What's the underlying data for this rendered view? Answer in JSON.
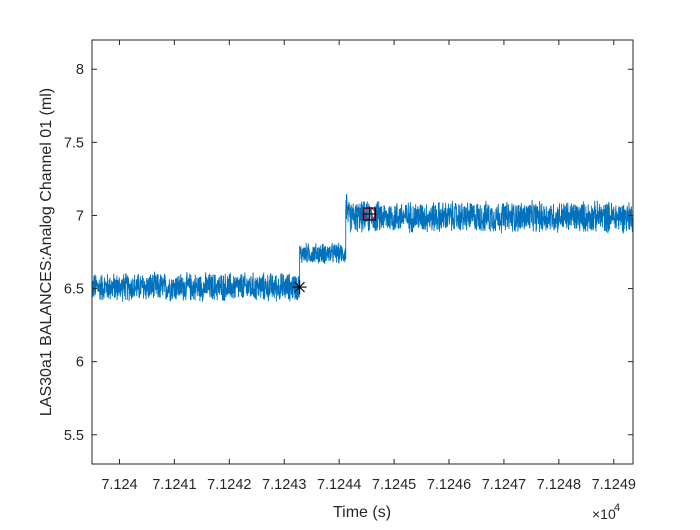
{
  "chart_data": {
    "type": "line",
    "xlabel": "Time (s)",
    "ylabel": "LAS30a1 BALANCES:Analog Channel  01 (ml)",
    "x_exponent_label": "×10",
    "x_exponent_power": "4",
    "xlim": [
      71239.5,
      71249.35
    ],
    "ylim": [
      5.3,
      8.2
    ],
    "x_ticks": [
      {
        "value": 71240,
        "label": "7.124"
      },
      {
        "value": 71241,
        "label": "7.1241"
      },
      {
        "value": 71242,
        "label": "7.1242"
      },
      {
        "value": 71243,
        "label": "7.1243"
      },
      {
        "value": 71244,
        "label": "7.1244"
      },
      {
        "value": 71245,
        "label": "7.1245"
      },
      {
        "value": 71246,
        "label": "7.1246"
      },
      {
        "value": 71247,
        "label": "7.1247"
      },
      {
        "value": 71248,
        "label": "7.1248"
      },
      {
        "value": 71249,
        "label": "7.1249"
      }
    ],
    "y_ticks": [
      {
        "value": 5.5,
        "label": "5.5"
      },
      {
        "value": 6,
        "label": "6"
      },
      {
        "value": 6.5,
        "label": "6.5"
      },
      {
        "value": 7,
        "label": "7"
      },
      {
        "value": 7.5,
        "label": "7.5"
      },
      {
        "value": 8,
        "label": "8"
      }
    ],
    "series": [
      {
        "color": "#0072BD",
        "segments": [
          {
            "x_start": 71239.5,
            "x_end": 71243.28,
            "mean": 6.51,
            "noise": 0.11
          },
          {
            "x_start": 71243.28,
            "x_end": 71244.12,
            "mean": 6.74,
            "noise": 0.08
          },
          {
            "x_start": 71244.12,
            "x_end": 71249.35,
            "mean": 6.99,
            "noise": 0.12
          }
        ],
        "x": [
          71239.5,
          71243.28,
          71243.28,
          71244.12,
          71244.12,
          71249.35
        ],
        "y": [
          6.51,
          6.51,
          6.74,
          6.74,
          6.99,
          6.99
        ]
      }
    ],
    "markers": [
      {
        "symbol": "asterisk",
        "x": 71243.28,
        "y": 6.51,
        "color": "#000000"
      },
      {
        "symbol": "circle-plus",
        "x": 71244.55,
        "y": 7.01,
        "color": "#FF0000"
      },
      {
        "symbol": "square-plus",
        "x": 71244.55,
        "y": 7.01,
        "color": "#000000"
      }
    ],
    "grid": false,
    "legend": "none"
  }
}
